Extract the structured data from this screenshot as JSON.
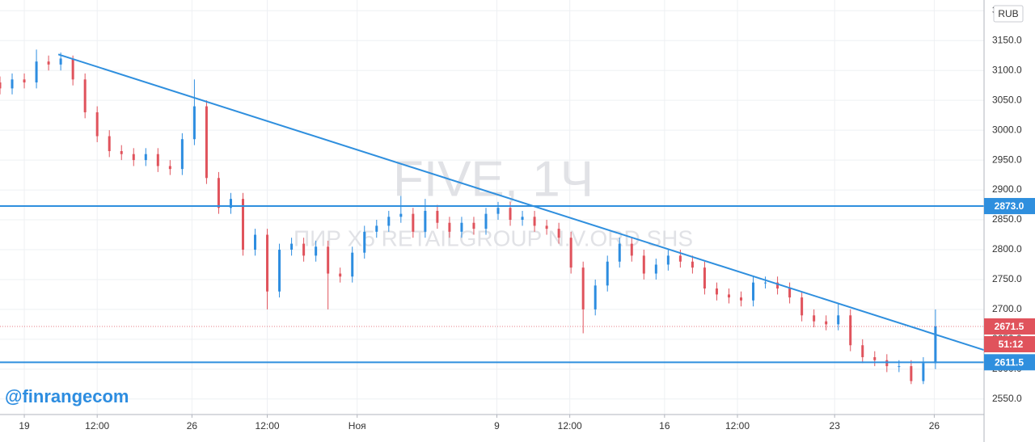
{
  "chart_data": {
    "type": "candlestick",
    "watermark": "FIVE, 1Ч",
    "subtitle": "ПИР X5 RETAILGROUP N.V.ORD SHS",
    "currency": "RUB",
    "handle": "@finrangecom",
    "countdown": "51:12",
    "up_color": "#2d8de0",
    "down_color": "#e0535c",
    "line_color": "#2f8fde",
    "open": [
      3080,
      3070,
      3085,
      3080,
      3115,
      3110,
      3120,
      3085,
      3030,
      2990,
      2965,
      2960,
      2950,
      2960,
      2940,
      2935,
      2985,
      3040,
      2920,
      2870,
      2885,
      2800,
      2825,
      2730,
      2800,
      2810,
      2790,
      2805,
      2760,
      2755,
      2795,
      2830,
      2840,
      2855,
      2860,
      2830,
      2865,
      2845,
      2830,
      2845,
      2835,
      2860,
      2870,
      2850,
      2855,
      2840,
      2835,
      2820,
      2770,
      2700,
      2740,
      2780,
      2810,
      2790,
      2760,
      2775,
      2790,
      2780,
      2770,
      2735,
      2725,
      2720,
      2715,
      2745,
      2745,
      2735,
      2720,
      2690,
      2680,
      2675,
      2690,
      2640,
      2620,
      2615,
      2605,
      2605,
      2580,
      2610
    ],
    "high": [
      3090,
      3095,
      3095,
      3135,
      3125,
      3130,
      3125,
      3095,
      3040,
      3000,
      2975,
      2970,
      2970,
      2970,
      2950,
      2995,
      3085,
      3050,
      2930,
      2895,
      2895,
      2835,
      2835,
      2810,
      2820,
      2820,
      2815,
      2815,
      2770,
      2805,
      2840,
      2850,
      2865,
      2890,
      2870,
      2885,
      2875,
      2855,
      2855,
      2855,
      2870,
      2880,
      2880,
      2865,
      2865,
      2850,
      2845,
      2830,
      2780,
      2750,
      2790,
      2820,
      2820,
      2800,
      2785,
      2800,
      2800,
      2790,
      2780,
      2745,
      2735,
      2730,
      2755,
      2755,
      2755,
      2745,
      2730,
      2700,
      2690,
      2710,
      2700,
      2650,
      2630,
      2625,
      2615,
      2615,
      2620,
      2700
    ],
    "low": [
      3060,
      3060,
      3070,
      3070,
      3100,
      3100,
      3075,
      3020,
      2980,
      2955,
      2950,
      2940,
      2940,
      2930,
      2925,
      2925,
      2975,
      2910,
      2860,
      2860,
      2790,
      2790,
      2700,
      2720,
      2790,
      2780,
      2780,
      2700,
      2745,
      2745,
      2785,
      2820,
      2830,
      2845,
      2820,
      2820,
      2835,
      2820,
      2820,
      2825,
      2825,
      2850,
      2840,
      2840,
      2830,
      2825,
      2810,
      2760,
      2660,
      2690,
      2730,
      2770,
      2780,
      2750,
      2750,
      2765,
      2770,
      2760,
      2725,
      2715,
      2710,
      2705,
      2705,
      2735,
      2725,
      2710,
      2680,
      2670,
      2665,
      2665,
      2630,
      2610,
      2605,
      2595,
      2595,
      2575,
      2575,
      2600
    ],
    "close": [
      3070,
      3085,
      3080,
      3115,
      3110,
      3120,
      3085,
      3030,
      2990,
      2965,
      2960,
      2950,
      2960,
      2940,
      2935,
      2985,
      3040,
      2920,
      2870,
      2885,
      2800,
      2825,
      2730,
      2800,
      2810,
      2790,
      2805,
      2760,
      2755,
      2795,
      2830,
      2840,
      2855,
      2860,
      2830,
      2865,
      2845,
      2830,
      2845,
      2835,
      2860,
      2870,
      2850,
      2855,
      2840,
      2835,
      2820,
      2770,
      2700,
      2740,
      2780,
      2810,
      2790,
      2760,
      2775,
      2790,
      2780,
      2770,
      2735,
      2725,
      2720,
      2715,
      2745,
      2745,
      2735,
      2720,
      2690,
      2680,
      2675,
      2690,
      2640,
      2620,
      2615,
      2605,
      2605,
      2580,
      2610,
      2671.5
    ],
    "xlim": [
      0,
      81
    ],
    "xticks": [
      {
        "value": 2,
        "label": "19"
      },
      {
        "value": 8,
        "label": "12:00"
      },
      {
        "value": 15.8,
        "label": "26"
      },
      {
        "value": 22,
        "label": "12:00"
      },
      {
        "value": 29.4,
        "label": "Ноя"
      },
      {
        "value": 40.9,
        "label": "9"
      },
      {
        "value": 46.9,
        "label": "12:00"
      },
      {
        "value": 54.7,
        "label": "16"
      },
      {
        "value": 60.7,
        "label": "12:00"
      },
      {
        "value": 68.7,
        "label": "23"
      },
      {
        "value": 76.9,
        "label": "26"
      }
    ],
    "ylim": [
      2524,
      3218
    ],
    "yticks": [
      {
        "value": 2550,
        "label": "2550.0"
      },
      {
        "value": 2600,
        "label": "2600.0"
      },
      {
        "value": 2650,
        "label": "2650.0"
      },
      {
        "value": 2700,
        "label": "2700.0"
      },
      {
        "value": 2750,
        "label": "2750.0"
      },
      {
        "value": 2800,
        "label": "2800.0"
      },
      {
        "value": 2850,
        "label": "2850.0"
      },
      {
        "value": 2900,
        "label": "2900.0"
      },
      {
        "value": 2950,
        "label": "2950.0"
      },
      {
        "value": 3000,
        "label": "3000.0"
      },
      {
        "value": 3050,
        "label": "3050.0"
      },
      {
        "value": 3100,
        "label": "3100.0"
      },
      {
        "value": 3150,
        "label": "3150.0"
      },
      {
        "value": 3200,
        "label": "3200.0"
      }
    ],
    "trendline": {
      "x": [
        4.8,
        81
      ],
      "y": [
        3127,
        2632
      ]
    },
    "levels": [
      2873,
      2611.5
    ],
    "level_labels": [
      "2873.0",
      "2611.5"
    ],
    "grid": true
  }
}
